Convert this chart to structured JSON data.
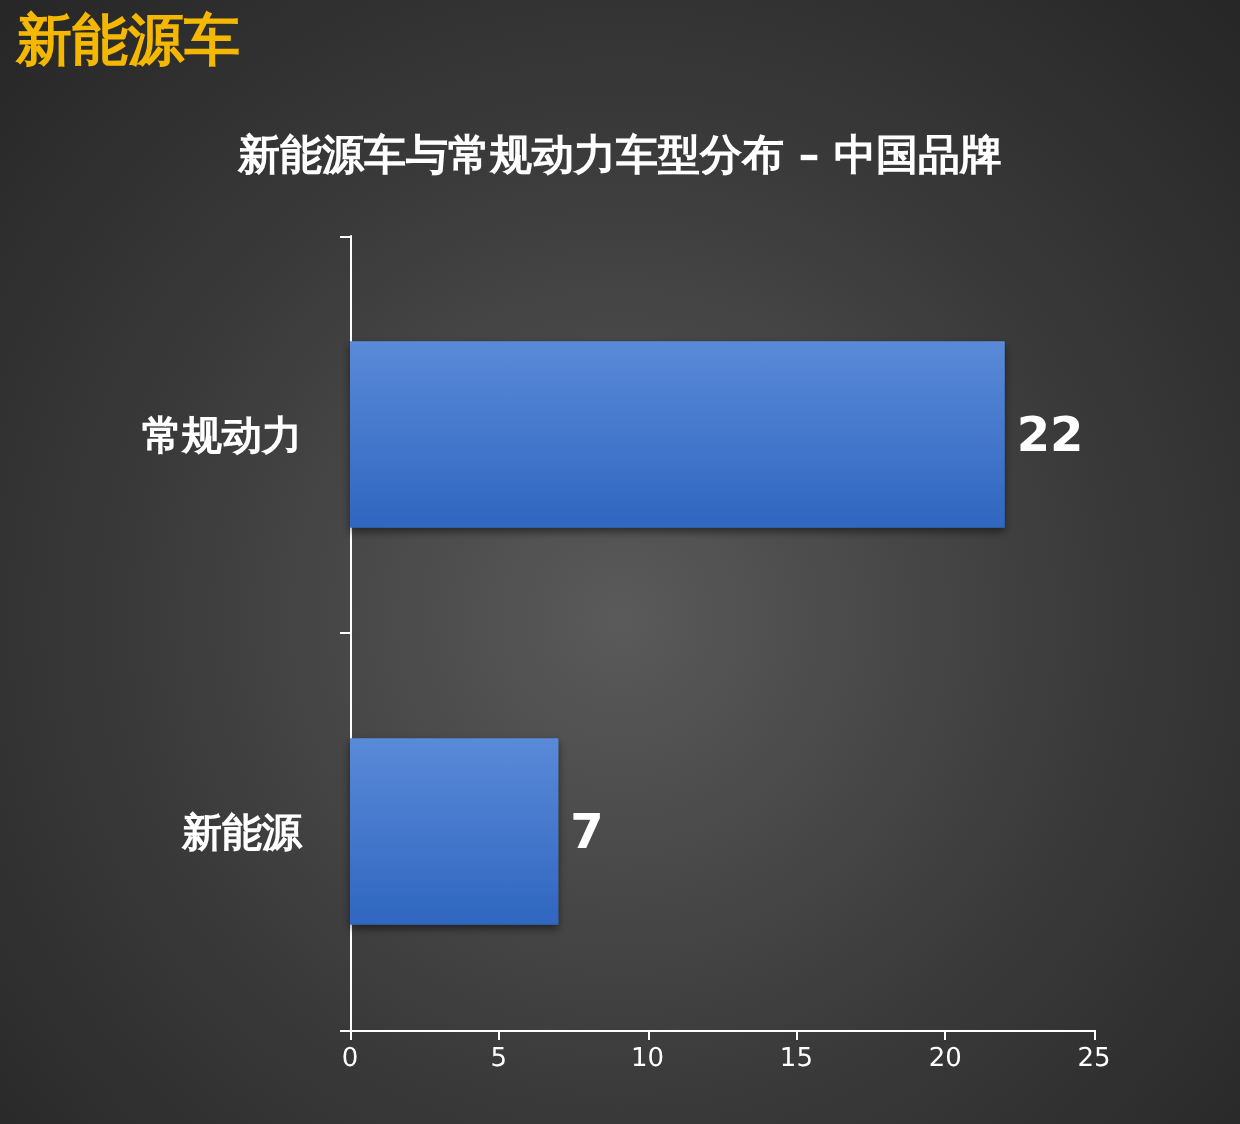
{
  "chart_data": {
    "type": "bar",
    "orientation": "horizontal",
    "title": "新能源车与常规动力车型分布 – 中国品牌",
    "annotations": [
      "新能源车"
    ],
    "categories": [
      "常规动力",
      "新能源"
    ],
    "values": [
      22,
      7
    ],
    "color": "#2f66c0",
    "xlim": [
      0,
      25
    ],
    "xticks": [
      0,
      5,
      10,
      15,
      20,
      25
    ],
    "data_labels": true,
    "grid": false
  }
}
